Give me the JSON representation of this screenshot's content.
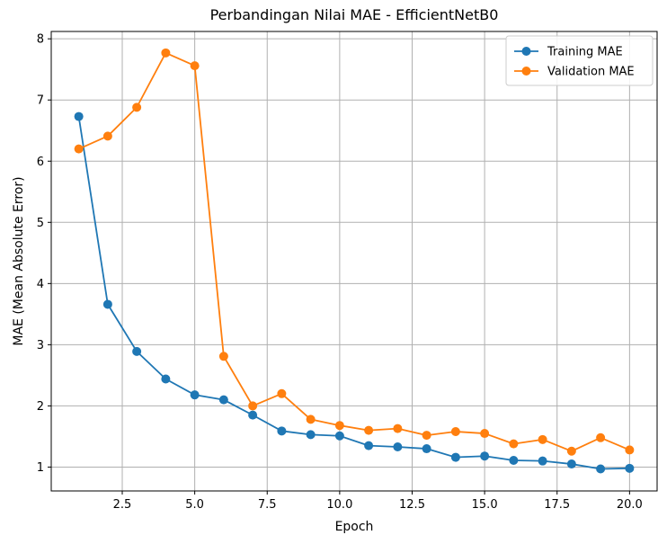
{
  "chart_data": {
    "type": "line",
    "title": "Perbandingan Nilai MAE - EfficientNetB0",
    "xlabel": "Epoch",
    "ylabel": "MAE (Mean Absolute Error)",
    "xlim": [
      0.05,
      20.95
    ],
    "ylim": [
      0.61,
      8.12
    ],
    "xticks": [
      2.5,
      5.0,
      7.5,
      10.0,
      12.5,
      15.0,
      17.5,
      20.0
    ],
    "xtick_labels": [
      "2.5",
      "5.0",
      "7.5",
      "10.0",
      "12.5",
      "15.0",
      "17.5",
      "20.0"
    ],
    "yticks": [
      1,
      2,
      3,
      4,
      5,
      6,
      7,
      8
    ],
    "ytick_labels": [
      "1",
      "2",
      "3",
      "4",
      "5",
      "6",
      "7",
      "8"
    ],
    "grid": true,
    "legend_position": "top-right",
    "x": [
      1,
      2,
      3,
      4,
      5,
      6,
      7,
      8,
      9,
      10,
      11,
      12,
      13,
      14,
      15,
      16,
      17,
      18,
      19,
      20
    ],
    "series": [
      {
        "name": "Training MAE",
        "color": "#1f77b4",
        "values": [
          6.73,
          3.66,
          2.89,
          2.44,
          2.18,
          2.1,
          1.85,
          1.59,
          1.53,
          1.51,
          1.35,
          1.33,
          1.3,
          1.16,
          1.18,
          1.11,
          1.1,
          1.05,
          0.97,
          0.98
        ]
      },
      {
        "name": "Validation MAE",
        "color": "#ff7f0e",
        "values": [
          6.2,
          6.41,
          6.88,
          7.77,
          7.56,
          2.81,
          2.0,
          2.2,
          1.78,
          1.68,
          1.6,
          1.63,
          1.52,
          1.58,
          1.55,
          1.38,
          1.45,
          1.26,
          1.48,
          1.28
        ]
      }
    ]
  }
}
